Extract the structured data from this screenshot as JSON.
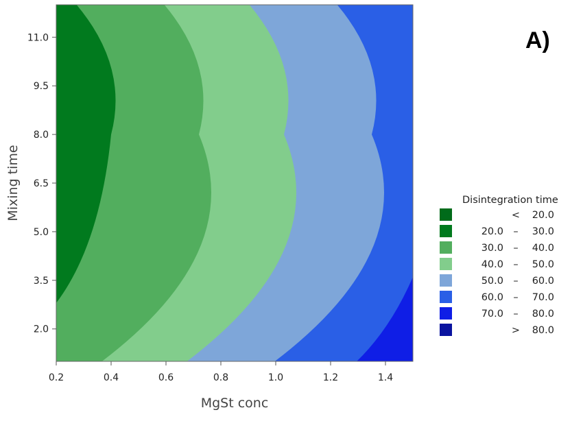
{
  "chart_data": {
    "type": "contour",
    "panel_label": "A)",
    "xlabel": "MgSt conc",
    "ylabel": "Mixing time",
    "xlim": [
      0.2,
      1.5
    ],
    "ylim": [
      1.0,
      12.0
    ],
    "xticks": [
      0.2,
      0.4,
      0.6,
      0.8,
      1.0,
      1.2,
      1.4
    ],
    "xtick_labels": [
      "0.2",
      "0.4",
      "0.6",
      "0.8",
      "1.0",
      "1.2",
      "1.4"
    ],
    "yticks": [
      2.0,
      3.5,
      5.0,
      6.5,
      8.0,
      9.5,
      11.0
    ],
    "ytick_labels": [
      "2.0",
      "3.5",
      "5.0",
      "6.5",
      "8.0",
      "9.5",
      "11.0"
    ],
    "legend_title": "Disintegration time",
    "legend": [
      {
        "lo": "",
        "sep": "<",
        "hi": "20.0",
        "color": "#006b1a"
      },
      {
        "lo": "20.0",
        "sep": "–",
        "hi": "30.0",
        "color": "#017a1e"
      },
      {
        "lo": "30.0",
        "sep": "–",
        "hi": "40.0",
        "color": "#52ae5e"
      },
      {
        "lo": "40.0",
        "sep": "–",
        "hi": "50.0",
        "color": "#82cd8c"
      },
      {
        "lo": "50.0",
        "sep": "–",
        "hi": "60.0",
        "color": "#7ea6d9"
      },
      {
        "lo": "60.0",
        "sep": "–",
        "hi": "70.0",
        "color": "#2a5fe6"
      },
      {
        "lo": "70.0",
        "sep": "–",
        "hi": "80.0",
        "color": "#0f1ee6"
      },
      {
        "lo": "",
        "sep": ">",
        "hi": "80.0",
        "color": "#0a14a0"
      }
    ],
    "contours": [
      {
        "level": 30,
        "top_x": 0.27,
        "vertex_x": 0.4,
        "vertex_y": 8.0,
        "bottom_x": 0.2,
        "bottom_y": 2.8
      },
      {
        "level": 40,
        "top_x": 0.59,
        "vertex_x": 0.72,
        "vertex_y": 8.0,
        "bottom_x": 0.36,
        "bottom_y": 1.0
      },
      {
        "level": 50,
        "top_x": 0.9,
        "vertex_x": 1.03,
        "vertex_y": 8.0,
        "bottom_x": 0.67,
        "bottom_y": 1.0
      },
      {
        "level": 60,
        "top_x": 1.22,
        "vertex_x": 1.35,
        "vertex_y": 8.0,
        "bottom_x": 0.99,
        "bottom_y": 1.0
      },
      {
        "level": 70,
        "top_x": 1.5,
        "vertex_x": 1.5,
        "vertex_y": 3.7,
        "bottom_x": 1.29,
        "bottom_y": 1.0
      }
    ]
  }
}
